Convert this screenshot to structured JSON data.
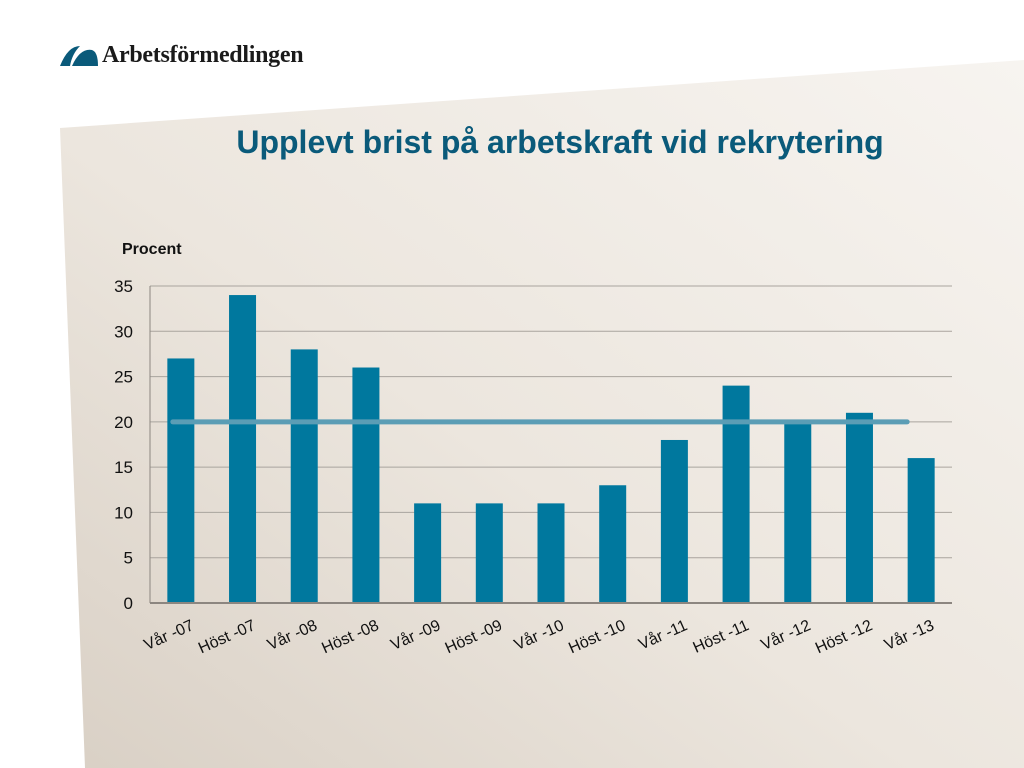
{
  "brand": {
    "name": "Arbetsförmedlingen",
    "mark_color": "#0a5a7a"
  },
  "chart_data": {
    "type": "bar",
    "title": "Upplevt brist på arbetskraft vid rekrytering",
    "ylabel": "Procent",
    "xlabel": "",
    "categories": [
      "Vår -07",
      "Höst -07",
      "Vår -08",
      "Höst -08",
      "Vår -09",
      "Höst -09",
      "Vår -10",
      "Höst -10",
      "Vår -11",
      "Höst -11",
      "Vår -12",
      "Höst -12",
      "Vår -13"
    ],
    "values": [
      27,
      34,
      28,
      26,
      11,
      11,
      11,
      13,
      18,
      24,
      20,
      21,
      16
    ],
    "reference_line": {
      "value": 20,
      "color": "#5b9db5"
    },
    "ylim": [
      0,
      35
    ],
    "yticks": [
      0,
      5,
      10,
      15,
      20,
      25,
      30,
      35
    ],
    "grid": true,
    "bar_color": "#00789e",
    "title_color": "#0a5a7a"
  }
}
